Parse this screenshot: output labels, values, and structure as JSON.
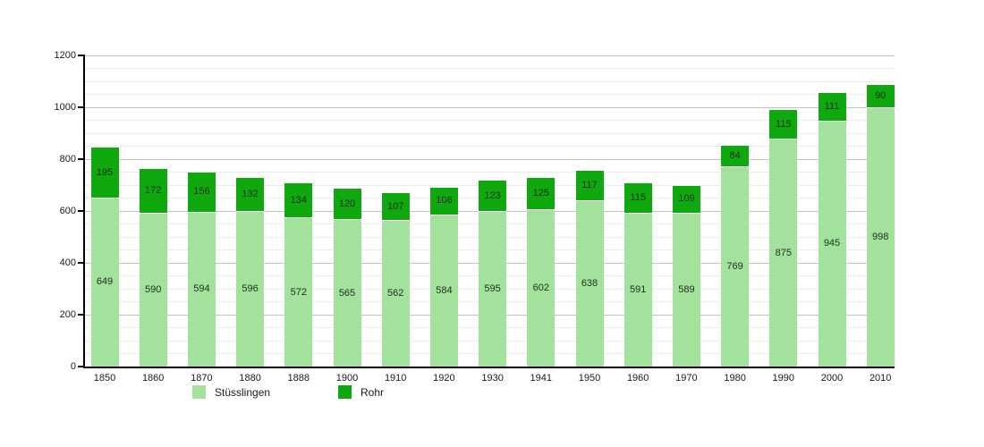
{
  "chart_data": {
    "type": "bar",
    "stacked": true,
    "title": "",
    "xlabel": "",
    "ylabel": "",
    "categories": [
      "1850",
      "1860",
      "1870",
      "1880",
      "1888",
      "1900",
      "1910",
      "1920",
      "1930",
      "1941",
      "1950",
      "1960",
      "1970",
      "1980",
      "1990",
      "2000",
      "2010"
    ],
    "series": [
      {
        "name": "Stüsslingen",
        "color": "#a3e29d",
        "values": [
          649,
          590,
          594,
          596,
          572,
          565,
          562,
          584,
          595,
          602,
          638,
          591,
          589,
          769,
          875,
          945,
          998
        ]
      },
      {
        "name": "Rohr",
        "color": "#0fa90f",
        "values": [
          195,
          172,
          156,
          132,
          134,
          120,
          107,
          106,
          123,
          125,
          117,
          115,
          109,
          84,
          115,
          111,
          90
        ]
      }
    ],
    "ylim": [
      0,
      1200
    ],
    "ytick_step": 200,
    "grid_minor_step": 50,
    "grid": "on",
    "legend_position": "bottom",
    "value_labels": "inside-segments"
  },
  "colors": {
    "background": "#ffffff",
    "axis": "#000000",
    "gridline_minor": "#ececec",
    "gridline_major": "#c3c3c3",
    "segment_separator": "#ffffff",
    "label_text": "#1c2e1c"
  },
  "legend": {
    "items": [
      {
        "label": "Stüsslingen",
        "swatch": "light-green"
      },
      {
        "label": "Rohr",
        "swatch": "dark-green"
      }
    ]
  }
}
